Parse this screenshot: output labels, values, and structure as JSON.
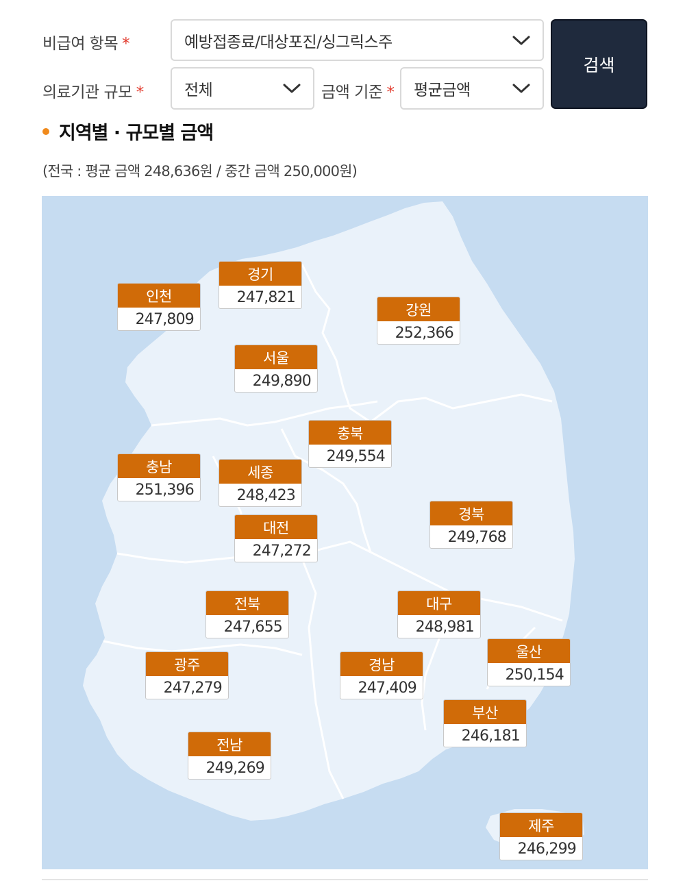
{
  "filters": {
    "item_label": "비급여 항목",
    "item_value": "예방접종료/대상포진/싱그릭스주",
    "institution_label": "의료기관 규모",
    "institution_value": "전체",
    "amount_label": "금액 기준",
    "amount_value": "평균금액",
    "required_mark": "*",
    "search_label": "검색"
  },
  "section": {
    "title": "지역별 · 규모별 금액",
    "summary": "(전국 : 평균 금액 248,636원 / 중간 금액 250,000원)"
  },
  "colors": {
    "badge_header": "#d06b08",
    "sea": "#c6dcf1",
    "land": "#eaf2fa",
    "border": "#ffffff",
    "accent_dot": "#f08a1c",
    "button": "#1f2a3d"
  },
  "regions": [
    {
      "name": "경기",
      "value": "247,821"
    },
    {
      "name": "인천",
      "value": "247,809"
    },
    {
      "name": "강원",
      "value": "252,366"
    },
    {
      "name": "서울",
      "value": "249,890"
    },
    {
      "name": "충북",
      "value": "249,554"
    },
    {
      "name": "충남",
      "value": "251,396"
    },
    {
      "name": "세종",
      "value": "248,423"
    },
    {
      "name": "경북",
      "value": "249,768"
    },
    {
      "name": "대전",
      "value": "247,272"
    },
    {
      "name": "전북",
      "value": "247,655"
    },
    {
      "name": "대구",
      "value": "248,981"
    },
    {
      "name": "울산",
      "value": "250,154"
    },
    {
      "name": "광주",
      "value": "247,279"
    },
    {
      "name": "경남",
      "value": "247,409"
    },
    {
      "name": "부산",
      "value": "246,181"
    },
    {
      "name": "전남",
      "value": "249,269"
    },
    {
      "name": "제주",
      "value": "246,299"
    }
  ]
}
